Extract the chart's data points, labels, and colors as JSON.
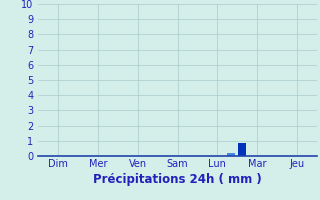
{
  "title": "Précipitations 24h ( mm )",
  "ylim": [
    0,
    10
  ],
  "yticks": [
    0,
    1,
    2,
    3,
    4,
    5,
    6,
    7,
    8,
    9,
    10
  ],
  "background_color": "#d4eeea",
  "plot_bg_color": "#d4eeea",
  "grid_color": "#aacccc",
  "day_labels": [
    "Dim",
    "Mer",
    "Ven",
    "Sam",
    "Lun",
    "Mar",
    "Jeu"
  ],
  "day_positions": [
    0,
    1,
    2,
    3,
    4,
    5,
    6
  ],
  "xlim": [
    -0.5,
    6.5
  ],
  "bars": [
    {
      "x": 4.35,
      "height": 0.22,
      "color": "#4488dd"
    },
    {
      "x": 4.62,
      "height": 0.85,
      "color": "#0033bb"
    }
  ],
  "bar_width": 0.2,
  "title_fontsize": 8.5,
  "tick_fontsize": 7,
  "title_color": "#2222bb",
  "tick_color": "#2222bb",
  "axis_color": "#2222bb",
  "spine_color": "#2244aa"
}
